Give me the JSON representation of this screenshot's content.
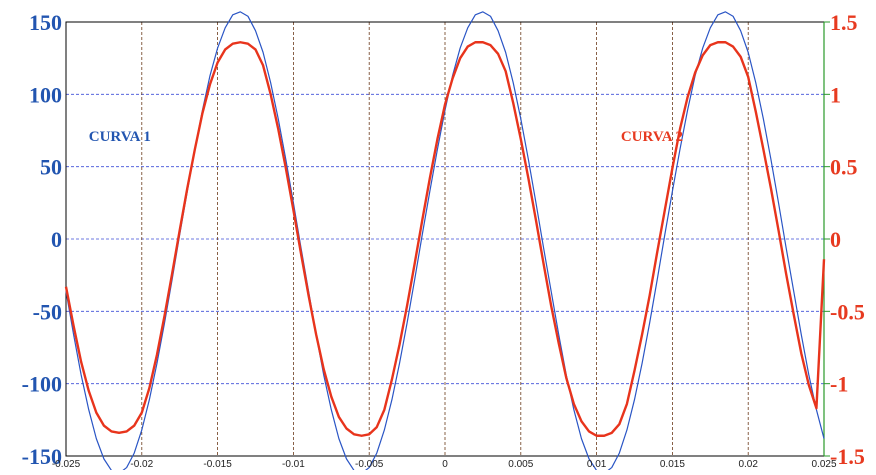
{
  "chart_data": {
    "type": "line",
    "title": "",
    "xlabel": "",
    "ylabel": "",
    "xlim": [
      -0.025,
      0.025
    ],
    "ylim_left": [
      -150,
      150
    ],
    "ylim_right": [
      -1.5,
      1.5
    ],
    "grid": true,
    "x_ticks": [
      "-0.025",
      "-0.02",
      "-0.015",
      "-0.01",
      "-0.005",
      "0",
      "0.005",
      "0.01",
      "0.015",
      "0.02",
      "0.025"
    ],
    "x_tick_values": [
      -0.025,
      -0.02,
      -0.015,
      -0.01,
      -0.005,
      0,
      0.005,
      0.01,
      0.015,
      0.02,
      0.025
    ],
    "y_left_ticks": [
      "150",
      "100",
      "50",
      "0",
      "-50",
      "-100",
      "-150"
    ],
    "y_left_tick_values": [
      150,
      100,
      50,
      0,
      -50,
      -100,
      -150
    ],
    "y_right_ticks": [
      "1.5",
      "1",
      "0.5",
      "0",
      "-0.5",
      "-1",
      "-1.5"
    ],
    "y_right_tick_values": [
      1.5,
      1,
      0.5,
      0,
      -0.5,
      -1,
      -1.5
    ],
    "annotations": [
      {
        "text": "CURVA 1",
        "axis": "left",
        "x": -0.0235,
        "y": 72
      },
      {
        "text": "CURVA 2",
        "axis": "right",
        "x": 0.0116,
        "y": 0.72
      }
    ],
    "series": [
      {
        "axis": "left",
        "color": "#2a55c5",
        "x": [
          -0.025,
          -0.0245,
          -0.024,
          -0.0235,
          -0.023,
          -0.0225,
          -0.022,
          -0.0215,
          -0.021,
          -0.0205,
          -0.02,
          -0.0195,
          -0.019,
          -0.0185,
          -0.018,
          -0.0175,
          -0.017,
          -0.0165,
          -0.016,
          -0.0155,
          -0.015,
          -0.0145,
          -0.014,
          -0.0135,
          -0.013,
          -0.0125,
          -0.012,
          -0.0115,
          -0.011,
          -0.0105,
          -0.01,
          -0.0095,
          -0.009,
          -0.0085,
          -0.008,
          -0.0075,
          -0.007,
          -0.0065,
          -0.006,
          -0.0055,
          -0.005,
          -0.0045,
          -0.004,
          -0.0035,
          -0.003,
          -0.0025,
          -0.002,
          -0.0015,
          -0.001,
          -0.0005,
          0,
          0.0005,
          0.001,
          0.0015,
          0.002,
          0.0025,
          0.003,
          0.0035,
          0.004,
          0.0045,
          0.005,
          0.0055,
          0.006,
          0.0065,
          0.007,
          0.0075,
          0.008,
          0.0085,
          0.009,
          0.0095,
          0.01,
          0.0105,
          0.011,
          0.0115,
          0.012,
          0.0125,
          0.013,
          0.0135,
          0.014,
          0.0145,
          0.015,
          0.0155,
          0.016,
          0.0165,
          0.017,
          0.0175,
          0.018,
          0.0185,
          0.019,
          0.0195,
          0.02,
          0.0205,
          0.021,
          0.0215,
          0.022,
          0.0225,
          0.023,
          0.0235,
          0.024,
          0.0245,
          0.025
        ],
        "y": [
          -36,
          -66,
          -94,
          -118,
          -138,
          -152,
          -160,
          -162,
          -158,
          -148,
          -132,
          -111,
          -86,
          -58,
          -28,
          3,
          33,
          62,
          89,
          113,
          132,
          146,
          155,
          157,
          154,
          144,
          129,
          108,
          83,
          55,
          25,
          -6,
          -36,
          -66,
          -94,
          -118,
          -138,
          -152,
          -160,
          -162,
          -158,
          -148,
          -132,
          -111,
          -86,
          -58,
          -28,
          3,
          33,
          62,
          89,
          113,
          132,
          146,
          155,
          157,
          154,
          144,
          129,
          108,
          83,
          55,
          25,
          -6,
          -36,
          -66,
          -94,
          -118,
          -138,
          -152,
          -160,
          -162,
          -158,
          -148,
          -132,
          -111,
          -86,
          -58,
          -28,
          3,
          33,
          62,
          89,
          113,
          132,
          146,
          155,
          157,
          154,
          144,
          129,
          108,
          83,
          55,
          25,
          -6,
          -36,
          -66,
          -94,
          -118,
          -138
        ]
      },
      {
        "axis": "right",
        "color": "#e8341c",
        "x": [
          -0.025,
          -0.0245,
          -0.024,
          -0.0235,
          -0.023,
          -0.0225,
          -0.022,
          -0.0215,
          -0.021,
          -0.0205,
          -0.02,
          -0.0195,
          -0.019,
          -0.0185,
          -0.018,
          -0.0175,
          -0.017,
          -0.0165,
          -0.016,
          -0.0155,
          -0.015,
          -0.0145,
          -0.014,
          -0.0135,
          -0.013,
          -0.0125,
          -0.012,
          -0.0115,
          -0.011,
          -0.0105,
          -0.01,
          -0.0095,
          -0.009,
          -0.0085,
          -0.008,
          -0.0075,
          -0.007,
          -0.0065,
          -0.006,
          -0.0055,
          -0.005,
          -0.0045,
          -0.004,
          -0.0035,
          -0.003,
          -0.0025,
          -0.002,
          -0.0015,
          -0.001,
          -0.0005,
          0,
          0.0005,
          0.001,
          0.0015,
          0.002,
          0.0025,
          0.003,
          0.0035,
          0.004,
          0.0045,
          0.005,
          0.0055,
          0.006,
          0.0065,
          0.007,
          0.0075,
          0.008,
          0.0085,
          0.009,
          0.0095,
          0.01,
          0.0105,
          0.011,
          0.0115,
          0.012,
          0.0125,
          0.013,
          0.0135,
          0.014,
          0.0145,
          0.015,
          0.0155,
          0.016,
          0.0165,
          0.017,
          0.0175,
          0.018,
          0.0185,
          0.019,
          0.0195,
          0.02,
          0.0205,
          0.021,
          0.0215,
          0.022,
          0.0225,
          0.023,
          0.0235,
          0.024,
          0.0245,
          0.025
        ],
        "y": [
          -0.33,
          -0.6,
          -0.85,
          -1.05,
          -1.2,
          -1.29,
          -1.33,
          -1.34,
          -1.33,
          -1.29,
          -1.2,
          -1.03,
          -0.8,
          -0.53,
          -0.24,
          0.06,
          0.35,
          0.62,
          0.87,
          1.07,
          1.22,
          1.31,
          1.35,
          1.36,
          1.35,
          1.31,
          1.2,
          1.0,
          0.76,
          0.49,
          0.2,
          -0.1,
          -0.39,
          -0.66,
          -0.9,
          -1.09,
          -1.23,
          -1.31,
          -1.35,
          -1.36,
          -1.35,
          -1.3,
          -1.18,
          -0.97,
          -0.73,
          -0.46,
          -0.17,
          0.13,
          0.42,
          0.69,
          0.93,
          1.11,
          1.25,
          1.33,
          1.36,
          1.36,
          1.34,
          1.28,
          1.16,
          0.94,
          0.69,
          0.42,
          0.13,
          -0.17,
          -0.46,
          -0.72,
          -0.96,
          -1.14,
          -1.26,
          -1.33,
          -1.36,
          -1.36,
          -1.34,
          -1.28,
          -1.14,
          -0.91,
          -0.66,
          -0.39,
          -0.09,
          0.2,
          0.49,
          0.76,
          0.98,
          1.15,
          1.27,
          1.34,
          1.36,
          1.36,
          1.33,
          1.26,
          1.12,
          0.88,
          0.62,
          0.35,
          0.06,
          -0.24,
          -0.52,
          -0.79,
          -1.01,
          -1.17,
          -0.14
        ]
      }
    ]
  }
}
